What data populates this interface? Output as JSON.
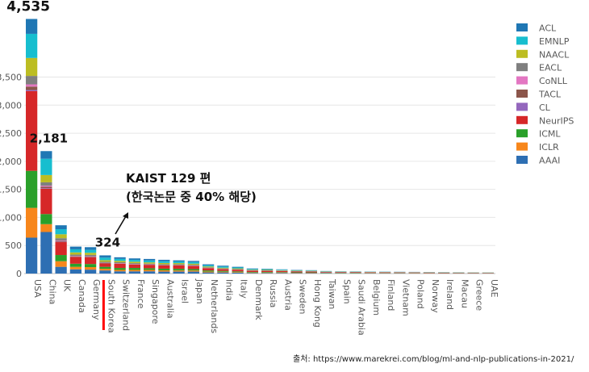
{
  "chart_data": {
    "type": "bar",
    "stacked": true,
    "ylim": [
      0,
      4700
    ],
    "yticks": [
      0,
      500,
      1000,
      1500,
      2000,
      2500,
      3000,
      3500
    ],
    "ytick_labels": [
      "0",
      "500",
      "1,000",
      "1,500",
      "2,000",
      "2,500",
      "3,000",
      "3,500"
    ],
    "grid": true,
    "legend_position": "right",
    "categories": [
      "USA",
      "China",
      "UK",
      "Canada",
      "Germany",
      "South Korea",
      "Switzerland",
      "France",
      "Singapore",
      "Australia",
      "Israel",
      "Japan",
      "Netherlands",
      "India",
      "Italy",
      "Denmark",
      "Russia",
      "Austria",
      "Sweden",
      "Hong Kong",
      "Taiwan",
      "Spain",
      "Saudi Arabia",
      "Belgium",
      "Finland",
      "Vietnam",
      "Poland",
      "Norway",
      "Ireland",
      "Macau",
      "Greece",
      "UAE"
    ],
    "totals": [
      4535,
      2181,
      860,
      480,
      470,
      324,
      290,
      270,
      260,
      245,
      235,
      225,
      165,
      140,
      120,
      90,
      85,
      75,
      65,
      60,
      45,
      40,
      38,
      36,
      34,
      32,
      30,
      28,
      25,
      23,
      22,
      20
    ],
    "series": [
      {
        "name": "AAAI",
        "color": "#2e6fb3",
        "values": [
          640,
          740,
          120,
          75,
          70,
          55,
          40,
          40,
          40,
          35,
          35,
          35,
          20,
          20,
          15,
          10,
          10,
          10,
          8,
          8,
          6,
          5,
          5,
          5,
          5,
          5,
          4,
          4,
          3,
          3,
          3,
          3
        ]
      },
      {
        "name": "ICLR",
        "color": "#f7861b",
        "values": [
          530,
          140,
          100,
          45,
          45,
          30,
          25,
          25,
          25,
          22,
          20,
          20,
          15,
          12,
          10,
          8,
          8,
          7,
          6,
          6,
          4,
          4,
          4,
          3,
          3,
          3,
          3,
          3,
          2,
          2,
          2,
          2
        ]
      },
      {
        "name": "ICML",
        "color": "#2aa02a",
        "values": [
          660,
          180,
          110,
          55,
          55,
          35,
          35,
          35,
          30,
          30,
          30,
          25,
          20,
          16,
          14,
          10,
          10,
          9,
          8,
          7,
          5,
          5,
          5,
          4,
          4,
          4,
          4,
          3,
          3,
          3,
          3,
          2
        ]
      },
      {
        "name": "NeurIPS",
        "color": "#d62728",
        "values": [
          1420,
          450,
          230,
          120,
          120,
          60,
          75,
          60,
          60,
          58,
          60,
          55,
          40,
          30,
          28,
          22,
          20,
          18,
          16,
          14,
          10,
          9,
          8,
          8,
          8,
          7,
          7,
          6,
          6,
          5,
          5,
          5
        ]
      },
      {
        "name": "CL",
        "color": "#9467bd",
        "values": [
          20,
          10,
          5,
          3,
          3,
          2,
          2,
          2,
          2,
          2,
          2,
          2,
          1,
          1,
          1,
          1,
          1,
          1,
          1,
          1,
          1,
          1,
          1,
          1,
          1,
          1,
          1,
          1,
          1,
          1,
          1,
          1
        ]
      },
      {
        "name": "TACL",
        "color": "#8c564b",
        "values": [
          60,
          25,
          15,
          8,
          8,
          5,
          5,
          5,
          5,
          4,
          4,
          4,
          3,
          3,
          2,
          2,
          2,
          2,
          1,
          1,
          1,
          1,
          1,
          1,
          1,
          1,
          1,
          1,
          1,
          1,
          1,
          1
        ]
      },
      {
        "name": "CoNLL",
        "color": "#e377c2",
        "values": [
          40,
          20,
          10,
          6,
          6,
          4,
          4,
          4,
          3,
          3,
          3,
          3,
          2,
          2,
          2,
          1,
          1,
          1,
          1,
          1,
          1,
          1,
          1,
          1,
          1,
          1,
          1,
          1,
          1,
          1,
          1,
          1
        ]
      },
      {
        "name": "EACL",
        "color": "#7f7f7f",
        "values": [
          150,
          60,
          40,
          25,
          25,
          18,
          15,
          15,
          12,
          12,
          12,
          12,
          10,
          8,
          8,
          6,
          5,
          5,
          4,
          4,
          3,
          3,
          3,
          3,
          2,
          2,
          2,
          2,
          2,
          2,
          2,
          2
        ]
      },
      {
        "name": "NAACL",
        "color": "#bcbd22",
        "values": [
          320,
          130,
          70,
          40,
          38,
          30,
          25,
          25,
          22,
          22,
          20,
          20,
          15,
          12,
          12,
          8,
          8,
          7,
          6,
          6,
          4,
          4,
          4,
          4,
          3,
          3,
          3,
          3,
          2,
          2,
          2,
          2
        ]
      },
      {
        "name": "EMNLP",
        "color": "#17becf",
        "values": [
          430,
          290,
          90,
          55,
          52,
          45,
          35,
          32,
          34,
          32,
          28,
          28,
          22,
          20,
          16,
          12,
          12,
          9,
          8,
          7,
          6,
          5,
          4,
          4,
          4,
          3,
          3,
          3,
          3,
          2,
          2,
          2
        ]
      },
      {
        "name": "ACL",
        "color": "#1f77b4",
        "values": [
          265,
          136,
          70,
          48,
          48,
          40,
          29,
          27,
          27,
          25,
          21,
          21,
          17,
          16,
          12,
          10,
          8,
          6,
          6,
          5,
          4,
          2,
          2,
          2,
          2,
          2,
          1,
          1,
          1,
          1,
          0,
          -1
        ]
      }
    ],
    "data_labels": [
      {
        "category": "USA",
        "text": "4,535"
      },
      {
        "category": "China",
        "text": "2,181"
      },
      {
        "category": "South Korea",
        "text": "324"
      }
    ],
    "highlight_category": "South Korea",
    "highlight_color": "#ff0000"
  },
  "annotation": {
    "line1": "KAIST 129 편",
    "line2": "(한국논문 중 40% 해당)"
  },
  "source": "출처: https://www.marekrei.com/blog/ml-and-nlp-publications-in-2021/"
}
